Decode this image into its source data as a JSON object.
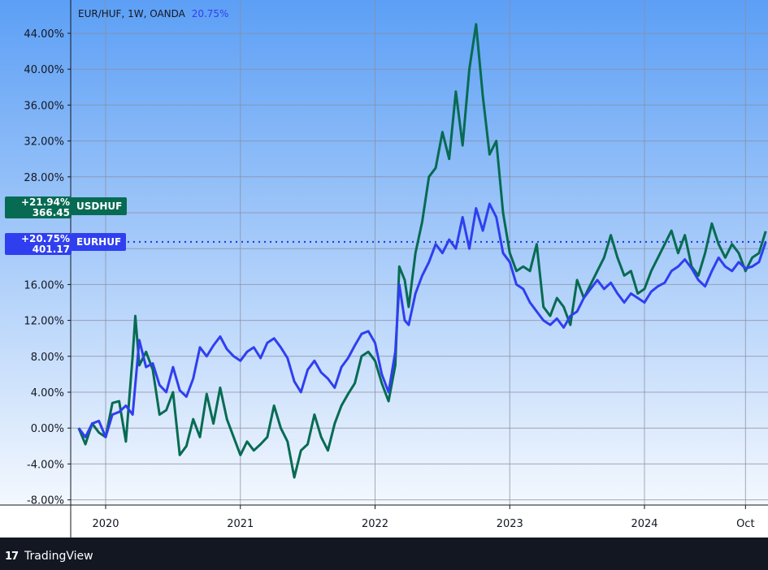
{
  "legend": {
    "symbol": "EUR/HUF, 1W, OANDA",
    "change": "20.75%"
  },
  "tags": {
    "usd": {
      "pct": "+21.94%",
      "price": "366.45",
      "name": "USDHUF",
      "color": "#076b53"
    },
    "eur": {
      "pct": "+20.75%",
      "price": "401.17",
      "name": "EURHUF",
      "color": "#2f3ff0"
    }
  },
  "footer": {
    "logo": "17",
    "brand": "TradingView"
  },
  "colors": {
    "bg_top": "#5c9ff5",
    "bg_bottom": "#f4f8fe",
    "grid": "#8a8fa0",
    "dotted": "#1f33d6"
  },
  "chart_data": {
    "type": "line",
    "title": "EUR/HUF, 1W, OANDA",
    "xlabel": "",
    "ylabel": "",
    "x_ticks": [
      "2020",
      "2021",
      "2022",
      "2023",
      "2024",
      "Oct"
    ],
    "x_tick_values": [
      2020.0,
      2021.0,
      2022.0,
      2023.0,
      2024.0,
      2024.75
    ],
    "y_ticks": [
      "44.00%",
      "40.00%",
      "36.00%",
      "32.00%",
      "28.00%",
      "24.00%",
      "20.00%",
      "16.00%",
      "12.00%",
      "8.00%",
      "4.00%",
      "0.00%",
      "-4.00%",
      "-8.00%"
    ],
    "ylim": [
      -8,
      46
    ],
    "xlim": [
      2019.8,
      2024.9
    ],
    "grid": true,
    "series": [
      {
        "name": "EURHUF",
        "color": "#2f3ff0",
        "last": "401.17",
        "last_change": "+20.75%",
        "points": [
          [
            2019.8,
            0
          ],
          [
            2019.85,
            -1
          ],
          [
            2019.9,
            0.5
          ],
          [
            2019.95,
            0.8
          ],
          [
            2020.0,
            -1
          ],
          [
            2020.05,
            1.5
          ],
          [
            2020.1,
            1.8
          ],
          [
            2020.15,
            2.5
          ],
          [
            2020.2,
            1.5
          ],
          [
            2020.25,
            9.8
          ],
          [
            2020.3,
            6.8
          ],
          [
            2020.35,
            7.2
          ],
          [
            2020.4,
            4.8
          ],
          [
            2020.45,
            4
          ],
          [
            2020.5,
            6.8
          ],
          [
            2020.55,
            4.2
          ],
          [
            2020.6,
            3.5
          ],
          [
            2020.65,
            5.5
          ],
          [
            2020.7,
            9
          ],
          [
            2020.75,
            8
          ],
          [
            2020.8,
            9.2
          ],
          [
            2020.85,
            10.2
          ],
          [
            2020.9,
            8.8
          ],
          [
            2020.95,
            8
          ],
          [
            2021.0,
            7.5
          ],
          [
            2021.05,
            8.5
          ],
          [
            2021.1,
            9
          ],
          [
            2021.15,
            7.8
          ],
          [
            2021.2,
            9.5
          ],
          [
            2021.25,
            10
          ],
          [
            2021.3,
            9
          ],
          [
            2021.35,
            7.8
          ],
          [
            2021.4,
            5.2
          ],
          [
            2021.45,
            4
          ],
          [
            2021.5,
            6.5
          ],
          [
            2021.55,
            7.5
          ],
          [
            2021.6,
            6.2
          ],
          [
            2021.65,
            5.5
          ],
          [
            2021.7,
            4.5
          ],
          [
            2021.75,
            6.8
          ],
          [
            2021.8,
            7.8
          ],
          [
            2021.85,
            9.2
          ],
          [
            2021.9,
            10.5
          ],
          [
            2021.95,
            10.8
          ],
          [
            2022.0,
            9.5
          ],
          [
            2022.05,
            6
          ],
          [
            2022.1,
            4
          ],
          [
            2022.15,
            8.5
          ],
          [
            2022.18,
            16
          ],
          [
            2022.22,
            12
          ],
          [
            2022.25,
            11.5
          ],
          [
            2022.3,
            15
          ],
          [
            2022.35,
            17
          ],
          [
            2022.4,
            18.5
          ],
          [
            2022.45,
            20.5
          ],
          [
            2022.5,
            19.5
          ],
          [
            2022.55,
            21
          ],
          [
            2022.6,
            20
          ],
          [
            2022.65,
            23.5
          ],
          [
            2022.7,
            20
          ],
          [
            2022.75,
            24.5
          ],
          [
            2022.8,
            22
          ],
          [
            2022.85,
            25
          ],
          [
            2022.9,
            23.5
          ],
          [
            2022.95,
            19.5
          ],
          [
            2023.0,
            18.5
          ],
          [
            2023.05,
            16
          ],
          [
            2023.1,
            15.5
          ],
          [
            2023.15,
            14
          ],
          [
            2023.2,
            13
          ],
          [
            2023.25,
            12
          ],
          [
            2023.3,
            11.5
          ],
          [
            2023.35,
            12.2
          ],
          [
            2023.4,
            11.2
          ],
          [
            2023.45,
            12.5
          ],
          [
            2023.5,
            13
          ],
          [
            2023.55,
            14.5
          ],
          [
            2023.6,
            15.5
          ],
          [
            2023.65,
            16.5
          ],
          [
            2023.7,
            15.5
          ],
          [
            2023.75,
            16.2
          ],
          [
            2023.8,
            15
          ],
          [
            2023.85,
            14
          ],
          [
            2023.9,
            15
          ],
          [
            2023.95,
            14.5
          ],
          [
            2024.0,
            14
          ],
          [
            2024.05,
            15.2
          ],
          [
            2024.1,
            15.8
          ],
          [
            2024.15,
            16.2
          ],
          [
            2024.2,
            17.5
          ],
          [
            2024.25,
            18
          ],
          [
            2024.3,
            18.8
          ],
          [
            2024.35,
            17.8
          ],
          [
            2024.4,
            16.5
          ],
          [
            2024.45,
            15.8
          ],
          [
            2024.5,
            17.5
          ],
          [
            2024.55,
            19
          ],
          [
            2024.6,
            18
          ],
          [
            2024.65,
            17.5
          ],
          [
            2024.7,
            18.5
          ],
          [
            2024.75,
            17.8
          ],
          [
            2024.8,
            18
          ],
          [
            2024.85,
            18.5
          ],
          [
            2024.9,
            20.75
          ]
        ]
      },
      {
        "name": "USDHUF",
        "color": "#076b53",
        "last": "366.45",
        "last_change": "+21.94%",
        "points": [
          [
            2019.8,
            0
          ],
          [
            2019.85,
            -1.8
          ],
          [
            2019.9,
            0.5
          ],
          [
            2019.95,
            -0.5
          ],
          [
            2020.0,
            -1
          ],
          [
            2020.05,
            2.8
          ],
          [
            2020.1,
            3
          ],
          [
            2020.15,
            -1.5
          ],
          [
            2020.2,
            8
          ],
          [
            2020.22,
            12.5
          ],
          [
            2020.25,
            7
          ],
          [
            2020.3,
            8.5
          ],
          [
            2020.35,
            6.5
          ],
          [
            2020.4,
            1.5
          ],
          [
            2020.45,
            2
          ],
          [
            2020.5,
            4
          ],
          [
            2020.55,
            -3
          ],
          [
            2020.6,
            -2
          ],
          [
            2020.65,
            1
          ],
          [
            2020.7,
            -1
          ],
          [
            2020.75,
            3.8
          ],
          [
            2020.8,
            0.5
          ],
          [
            2020.85,
            4.5
          ],
          [
            2020.9,
            1
          ],
          [
            2020.95,
            -1
          ],
          [
            2021.0,
            -3
          ],
          [
            2021.05,
            -1.5
          ],
          [
            2021.1,
            -2.5
          ],
          [
            2021.15,
            -1.8
          ],
          [
            2021.2,
            -1
          ],
          [
            2021.25,
            2.5
          ],
          [
            2021.3,
            0
          ],
          [
            2021.35,
            -1.5
          ],
          [
            2021.4,
            -5.5
          ],
          [
            2021.45,
            -2.5
          ],
          [
            2021.5,
            -1.8
          ],
          [
            2021.55,
            1.5
          ],
          [
            2021.6,
            -1
          ],
          [
            2021.65,
            -2.5
          ],
          [
            2021.7,
            0.5
          ],
          [
            2021.75,
            2.5
          ],
          [
            2021.8,
            3.8
          ],
          [
            2021.85,
            5
          ],
          [
            2021.9,
            8
          ],
          [
            2021.95,
            8.5
          ],
          [
            2022.0,
            7.5
          ],
          [
            2022.05,
            5
          ],
          [
            2022.1,
            3
          ],
          [
            2022.15,
            7
          ],
          [
            2022.18,
            18
          ],
          [
            2022.22,
            16.5
          ],
          [
            2022.25,
            13.5
          ],
          [
            2022.3,
            19.5
          ],
          [
            2022.35,
            23
          ],
          [
            2022.4,
            28
          ],
          [
            2022.45,
            29
          ],
          [
            2022.5,
            33
          ],
          [
            2022.55,
            30
          ],
          [
            2022.6,
            37.5
          ],
          [
            2022.65,
            31.5
          ],
          [
            2022.7,
            40
          ],
          [
            2022.75,
            45
          ],
          [
            2022.8,
            37
          ],
          [
            2022.85,
            30.5
          ],
          [
            2022.9,
            32
          ],
          [
            2022.95,
            24
          ],
          [
            2023.0,
            19.5
          ],
          [
            2023.05,
            17.5
          ],
          [
            2023.1,
            18
          ],
          [
            2023.15,
            17.5
          ],
          [
            2023.2,
            20.5
          ],
          [
            2023.25,
            13.5
          ],
          [
            2023.3,
            12.5
          ],
          [
            2023.35,
            14.5
          ],
          [
            2023.4,
            13.5
          ],
          [
            2023.45,
            11.5
          ],
          [
            2023.5,
            16.5
          ],
          [
            2023.55,
            14.5
          ],
          [
            2023.6,
            16
          ],
          [
            2023.65,
            17.5
          ],
          [
            2023.7,
            19
          ],
          [
            2023.75,
            21.5
          ],
          [
            2023.8,
            19
          ],
          [
            2023.85,
            17
          ],
          [
            2023.9,
            17.5
          ],
          [
            2023.95,
            15
          ],
          [
            2024.0,
            15.5
          ],
          [
            2024.05,
            17.5
          ],
          [
            2024.1,
            19
          ],
          [
            2024.15,
            20.5
          ],
          [
            2024.2,
            22
          ],
          [
            2024.25,
            19.5
          ],
          [
            2024.3,
            21.5
          ],
          [
            2024.35,
            18
          ],
          [
            2024.4,
            17
          ],
          [
            2024.45,
            19.5
          ],
          [
            2024.5,
            22.8
          ],
          [
            2024.55,
            20.5
          ],
          [
            2024.6,
            19
          ],
          [
            2024.65,
            20.5
          ],
          [
            2024.7,
            19.5
          ],
          [
            2024.75,
            17.5
          ],
          [
            2024.8,
            19
          ],
          [
            2024.85,
            19.5
          ],
          [
            2024.9,
            21.94
          ]
        ]
      }
    ],
    "reference_line": {
      "value": 20.75,
      "style": "dotted"
    }
  }
}
